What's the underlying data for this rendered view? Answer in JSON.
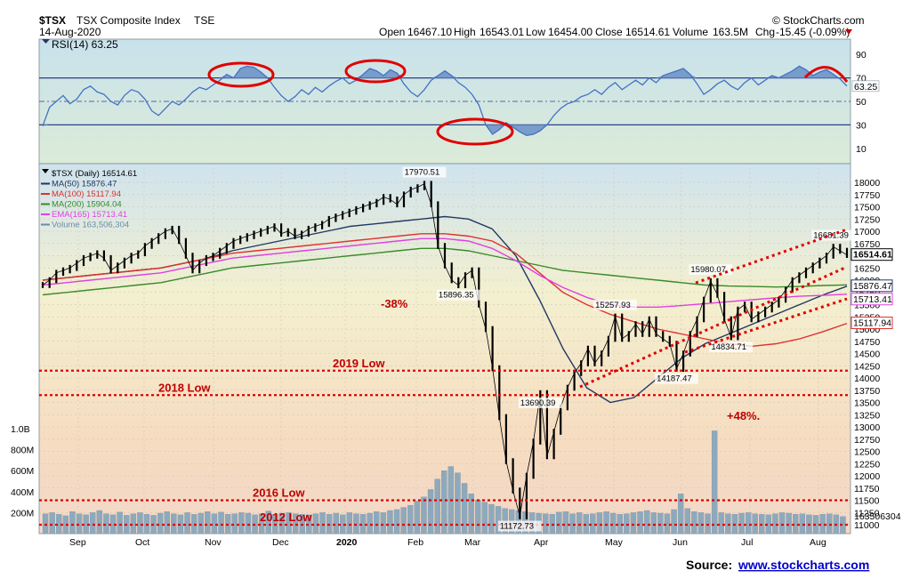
{
  "header": {
    "symbol": "$TSX",
    "name": "TSX Composite Index",
    "exchange": "TSE",
    "date": "14-Aug-2020",
    "watermark": "© StockCharts.com",
    "open_label": "Open",
    "open": "16467.10",
    "high_label": "High",
    "high": "16543.01",
    "low_label": "Low",
    "low": "16454.00",
    "close_label": "Close",
    "close": "16514.61",
    "volume_label": "Volume",
    "volume": "163.5M",
    "chg_label": "Chg",
    "chg": "-15.45 (-0.09%)"
  },
  "source": {
    "label": "Source:",
    "link": "www.stockcharts.com"
  },
  "colors": {
    "price": "#000000",
    "rsi": "#4472c4",
    "ma50": "#203864",
    "ma100": "#e03030",
    "ma200": "#3a8a2a",
    "ema165": "#e040e0",
    "volume": "#8fa9bc",
    "red": "#e00000"
  },
  "chart_data": [
    {
      "type": "line",
      "panel": "rsi",
      "legend": "RSI(14) 63.25",
      "ylim": [
        0,
        100
      ],
      "yticks": [
        "90",
        "70",
        "50",
        "30",
        "10"
      ],
      "last_label": "63.25",
      "series": [
        {
          "values": [
            29,
            45,
            50,
            55,
            48,
            52,
            60,
            63,
            58,
            56,
            50,
            47,
            55,
            60,
            58,
            52,
            42,
            38,
            44,
            50,
            47,
            52,
            58,
            62,
            60,
            64,
            68,
            73,
            70,
            78,
            80,
            79,
            75,
            70,
            62,
            55,
            50,
            54,
            60,
            56,
            62,
            58,
            63,
            67,
            70,
            65,
            68,
            73,
            78,
            76,
            72,
            77,
            74,
            65,
            58,
            54,
            60,
            68,
            72,
            76,
            72,
            66,
            62,
            56,
            47,
            30,
            22,
            26,
            32,
            28,
            24,
            21,
            22,
            25,
            30,
            38,
            44,
            48,
            50,
            54,
            56,
            60,
            56,
            62,
            66,
            60,
            64,
            68,
            64,
            70,
            66,
            72,
            74,
            76,
            78,
            73,
            65,
            56,
            60,
            65,
            68,
            63,
            60,
            66,
            70,
            64,
            68,
            72,
            70,
            73,
            76,
            80,
            77,
            72,
            75,
            77,
            73,
            69,
            63
          ]
        }
      ]
    },
    {
      "type": "line",
      "panel": "price",
      "legend": "$TSX (Daily) 16514.61",
      "ylim": [
        11000,
        18000
      ],
      "yticks": [
        "18000",
        "17750",
        "17500",
        "17250",
        "17000",
        "16750",
        "16500",
        "16250",
        "16000",
        "15750",
        "15500",
        "15250",
        "15000",
        "14750",
        "14500",
        "14250",
        "14000",
        "13750",
        "13500",
        "13250",
        "13000",
        "12750",
        "12500",
        "12250",
        "12000",
        "11750",
        "11500",
        "11250",
        "11000"
      ],
      "xticks": [
        "Sep",
        "Oct",
        "Nov",
        "Dec",
        "2020",
        "Feb",
        "Mar",
        "Apr",
        "May",
        "Jun",
        "Jul",
        "Aug"
      ],
      "series": [
        {
          "name": "$TSX (Daily) 16514.61",
          "values": [
            15900,
            16000,
            16150,
            16200,
            16250,
            16350,
            16450,
            16500,
            16550,
            16450,
            16200,
            16300,
            16400,
            16500,
            16550,
            16700,
            16800,
            16900,
            17000,
            17050,
            16800,
            16500,
            16200,
            16350,
            16450,
            16500,
            16600,
            16700,
            16800,
            16850,
            16900,
            16950,
            17000,
            17050,
            17100,
            16950,
            17000,
            16900,
            16950,
            17050,
            17100,
            17150,
            17250,
            17300,
            17350,
            17400,
            17450,
            17500,
            17550,
            17600,
            17700,
            17650,
            17550,
            17750,
            17850,
            17900,
            17970,
            17550,
            16700,
            16300,
            16000,
            15896,
            16100,
            16200,
            15500,
            15000,
            14200,
            13200,
            12300,
            11700,
            11172,
            12000,
            12700,
            13690,
            12400,
            12900,
            13400,
            13800,
            14100,
            14300,
            14600,
            14300,
            14500,
            14800,
            15257,
            14800,
            14900,
            15100,
            14900,
            15200,
            14900,
            14800,
            14700,
            14187,
            14500,
            14900,
            15200,
            15600,
            15980,
            15700,
            15200,
            14834,
            15400,
            15500,
            15200,
            15300,
            15400,
            15500,
            15600,
            15800,
            16000,
            16100,
            16200,
            16300,
            16400,
            16500,
            16681,
            16600,
            16514.61
          ]
        },
        {
          "name": "MA(50) 15876.47",
          "values": [
            16000,
            16050,
            16100,
            16150,
            16200,
            16250,
            16350,
            16450,
            16600,
            16700,
            16800,
            16900,
            17000,
            17100,
            17150,
            17200,
            17250,
            17300,
            17250,
            17050,
            16500,
            15600,
            14600,
            13800,
            13500,
            13600,
            14000,
            14400,
            14700,
            14900,
            15100,
            15300,
            15500,
            15700,
            15876
          ]
        },
        {
          "name": "MA(100) 15117.94",
          "values": [
            16000,
            16050,
            16100,
            16150,
            16200,
            16250,
            16350,
            16450,
            16550,
            16600,
            16650,
            16700,
            16750,
            16800,
            16850,
            16900,
            16950,
            16950,
            16900,
            16800,
            16550,
            16150,
            15750,
            15500,
            15300,
            15150,
            15000,
            14900,
            14800,
            14700,
            14650,
            14700,
            14800,
            14950,
            15117
          ]
        },
        {
          "name": "MA(200) 15904.04",
          "values": [
            15700,
            15750,
            15800,
            15850,
            15900,
            15950,
            16050,
            16150,
            16250,
            16300,
            16350,
            16400,
            16450,
            16500,
            16550,
            16600,
            16650,
            16650,
            16600,
            16500,
            16400,
            16300,
            16200,
            16150,
            16100,
            16050,
            16000,
            15950,
            15900,
            15880,
            15870,
            15860,
            15870,
            15890,
            15904
          ]
        },
        {
          "name": "EMA(165) 15713.41",
          "values": [
            15900,
            15950,
            16000,
            16050,
            16100,
            16150,
            16250,
            16350,
            16450,
            16500,
            16550,
            16600,
            16650,
            16700,
            16750,
            16800,
            16850,
            16850,
            16800,
            16650,
            16400,
            16100,
            15850,
            15650,
            15500,
            15450,
            15450,
            15480,
            15520,
            15560,
            15600,
            15640,
            15670,
            15690,
            15713
          ]
        }
      ],
      "annotations": [
        {
          "text": "17970.51",
          "x_index": 56,
          "y": 17970.51
        },
        {
          "text": "15896.35",
          "x_index": 61,
          "y": 15896.35
        },
        {
          "text": "15257.93",
          "x_index": 84,
          "y": 15257.93
        },
        {
          "text": "13690.39",
          "x_index": 73,
          "y": 13690.39
        },
        {
          "text": "11172.73",
          "x_index": 70,
          "y": 11172.73
        },
        {
          "text": "14187.47",
          "x_index": 93,
          "y": 14187.47
        },
        {
          "text": "15980.07",
          "x_index": 98,
          "y": 15980.07
        },
        {
          "text": "14834.71",
          "x_index": 101,
          "y": 14834.71
        },
        {
          "text": "16681.39",
          "x_index": 116,
          "y": 16681.39
        }
      ],
      "levels": [
        {
          "text": "2019 Low",
          "y": 14150
        },
        {
          "text": "2018 Low",
          "y": 13650
        },
        {
          "text": "2016 Low",
          "y": 11500
        },
        {
          "text": "2012 Low",
          "y": 11000
        }
      ],
      "pct_labels": [
        "-38%",
        "+48%."
      ],
      "right_labels": [
        "16514.61",
        "15876.47",
        "15713.41",
        "15117.94"
      ]
    },
    {
      "type": "bar",
      "panel": "volume",
      "legend": "Volume 163,506,304",
      "yticks": [
        "1.0B",
        "800M",
        "600M",
        "400M",
        "200M"
      ],
      "last_label": "163506304",
      "values": [
        190,
        200,
        185,
        170,
        210,
        190,
        180,
        200,
        220,
        190,
        180,
        205,
        175,
        190,
        200,
        185,
        175,
        195,
        210,
        190,
        180,
        200,
        185,
        195,
        210,
        190,
        205,
        185,
        190,
        200,
        195,
        180,
        190,
        215,
        185,
        195,
        200,
        190,
        185,
        180,
        190,
        200,
        185,
        195,
        180,
        200,
        190,
        185,
        195,
        210,
        200,
        220,
        230,
        250,
        270,
        310,
        350,
        420,
        520,
        600,
        640,
        580,
        480,
        380,
        320,
        300,
        280,
        260,
        240,
        230,
        220,
        210,
        200,
        195,
        190,
        185,
        205,
        210,
        190,
        200,
        185,
        190,
        200,
        210,
        195,
        185,
        190,
        200,
        210,
        220,
        200,
        195,
        190,
        230,
        380,
        240,
        210,
        200,
        190,
        980,
        200,
        190,
        185,
        195,
        200,
        190,
        185,
        180,
        190,
        200,
        195,
        185,
        190,
        180,
        175,
        185,
        190,
        180,
        163.5
      ]
    }
  ]
}
